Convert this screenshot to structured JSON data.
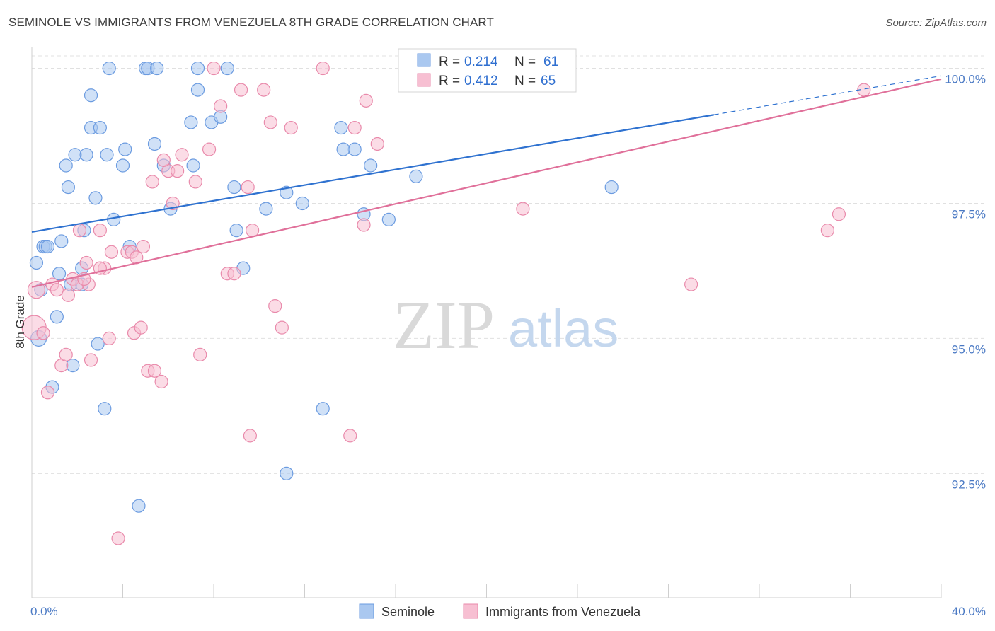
{
  "title": "SEMINOLE VS IMMIGRANTS FROM VENEZUELA 8TH GRADE CORRELATION CHART",
  "source": "Source: ZipAtlas.com",
  "watermark": {
    "zip": "ZIP",
    "atlas": "atlas"
  },
  "colors": {
    "seminole_fill": "#aac8f0",
    "seminole_stroke": "#6b9be0",
    "seminole_line": "#2f72d0",
    "venezuela_fill": "#f7bfd2",
    "venezuela_stroke": "#e98aab",
    "venezuela_line": "#e0709a",
    "grid": "#e0e0e0",
    "tick_label": "#4a79c4"
  },
  "legend": {
    "r_label": "R =",
    "n_label": "N =",
    "series": [
      {
        "r": "0.214",
        "n": "61"
      },
      {
        "r": "0.412",
        "n": "65"
      }
    ]
  },
  "chart_data": {
    "type": "scatter",
    "title": "SEMINOLE VS IMMIGRANTS FROM VENEZUELA 8TH GRADE CORRELATION CHART",
    "xlabel": "",
    "ylabel": "8th Grade",
    "xlim": [
      0,
      40
    ],
    "ylim": [
      90.2,
      100.4
    ],
    "x_tick_labels": [
      "0.0%",
      "40.0%"
    ],
    "y_ticks": [
      92.5,
      95.0,
      97.5,
      100.0
    ],
    "y_tick_labels": [
      "92.5%",
      "95.0%",
      "97.5%",
      "100.0%"
    ],
    "grid": "horizontal dashed",
    "legend_position": "top-center",
    "series": [
      {
        "name": "Seminole",
        "trend": {
          "x0": 0,
          "y0": 96.97,
          "x1": 30,
          "y1": 99.14,
          "dashed_to_x": 40,
          "dashed_to_y": 99.86
        },
        "points": [
          [
            0.2,
            96.4
          ],
          [
            0.5,
            96.7
          ],
          [
            0.6,
            96.7
          ],
          [
            0.7,
            96.7
          ],
          [
            1.3,
            96.8
          ],
          [
            0.4,
            95.9
          ],
          [
            1.2,
            96.2
          ],
          [
            1.7,
            96.0
          ],
          [
            2.2,
            96.0
          ],
          [
            0.3,
            95.0
          ],
          [
            1.1,
            95.4
          ],
          [
            2.9,
            94.9
          ],
          [
            1.8,
            94.5
          ],
          [
            0.9,
            94.1
          ],
          [
            3.2,
            93.7
          ],
          [
            4.7,
            91.9
          ],
          [
            11.2,
            92.5
          ],
          [
            12.8,
            93.7
          ],
          [
            2.3,
            97.0
          ],
          [
            3.6,
            97.2
          ],
          [
            2.8,
            97.6
          ],
          [
            1.6,
            97.8
          ],
          [
            1.5,
            98.2
          ],
          [
            1.9,
            98.4
          ],
          [
            2.4,
            98.4
          ],
          [
            3.3,
            98.4
          ],
          [
            4.0,
            98.2
          ],
          [
            4.1,
            98.5
          ],
          [
            5.4,
            98.6
          ],
          [
            5.8,
            98.2
          ],
          [
            6.1,
            97.4
          ],
          [
            7.1,
            98.2
          ],
          [
            8.9,
            97.8
          ],
          [
            9.0,
            97.0
          ],
          [
            9.3,
            96.3
          ],
          [
            10.3,
            97.4
          ],
          [
            11.2,
            97.7
          ],
          [
            11.9,
            97.5
          ],
          [
            14.6,
            97.3
          ],
          [
            15.7,
            97.2
          ],
          [
            16.9,
            98.0
          ],
          [
            14.2,
            98.5
          ],
          [
            14.9,
            98.2
          ],
          [
            13.7,
            98.5
          ],
          [
            13.6,
            98.9
          ],
          [
            7.0,
            99.0
          ],
          [
            7.9,
            99.0
          ],
          [
            8.3,
            99.1
          ],
          [
            2.6,
            98.9
          ],
          [
            3.0,
            98.9
          ],
          [
            2.6,
            99.5
          ],
          [
            5.0,
            100.0
          ],
          [
            5.1,
            100.0
          ],
          [
            5.5,
            100.0
          ],
          [
            7.3,
            100.0
          ],
          [
            8.6,
            100.0
          ],
          [
            3.4,
            100.0
          ],
          [
            7.3,
            99.6
          ],
          [
            4.3,
            96.7
          ],
          [
            25.5,
            97.8
          ],
          [
            2.2,
            96.3
          ]
        ]
      },
      {
        "name": "Immigrants from Venezuela",
        "trend": {
          "x0": 0,
          "y0": 95.95,
          "x1": 40,
          "y1": 99.8
        },
        "points": [
          [
            0.1,
            95.2
          ],
          [
            0.2,
            95.9
          ],
          [
            0.5,
            95.1
          ],
          [
            0.7,
            94.0
          ],
          [
            0.9,
            96.0
          ],
          [
            1.1,
            95.9
          ],
          [
            1.6,
            95.8
          ],
          [
            1.8,
            96.1
          ],
          [
            2.0,
            96.0
          ],
          [
            1.3,
            94.5
          ],
          [
            1.5,
            94.7
          ],
          [
            2.6,
            94.6
          ],
          [
            3.4,
            95.0
          ],
          [
            2.5,
            96.0
          ],
          [
            2.4,
            96.4
          ],
          [
            3.2,
            96.3
          ],
          [
            2.1,
            97.0
          ],
          [
            3.0,
            97.0
          ],
          [
            3.5,
            96.6
          ],
          [
            4.2,
            96.6
          ],
          [
            4.4,
            96.6
          ],
          [
            4.6,
            96.5
          ],
          [
            4.9,
            96.7
          ],
          [
            4.5,
            95.1
          ],
          [
            4.8,
            95.2
          ],
          [
            5.1,
            94.4
          ],
          [
            5.4,
            94.4
          ],
          [
            5.7,
            94.2
          ],
          [
            3.8,
            91.3
          ],
          [
            7.4,
            94.7
          ],
          [
            8.6,
            96.2
          ],
          [
            8.9,
            96.2
          ],
          [
            9.5,
            97.8
          ],
          [
            9.7,
            97.0
          ],
          [
            10.7,
            95.6
          ],
          [
            11.0,
            95.2
          ],
          [
            9.6,
            93.2
          ],
          [
            14.0,
            93.2
          ],
          [
            14.6,
            97.1
          ],
          [
            5.3,
            97.9
          ],
          [
            6.0,
            98.1
          ],
          [
            6.4,
            98.1
          ],
          [
            6.2,
            97.5
          ],
          [
            7.2,
            97.9
          ],
          [
            7.8,
            98.5
          ],
          [
            5.8,
            98.3
          ],
          [
            6.6,
            98.4
          ],
          [
            8.3,
            99.3
          ],
          [
            9.2,
            99.6
          ],
          [
            10.2,
            99.6
          ],
          [
            10.5,
            99.0
          ],
          [
            11.4,
            98.9
          ],
          [
            14.2,
            98.9
          ],
          [
            15.2,
            98.6
          ],
          [
            8.0,
            100.0
          ],
          [
            12.8,
            100.0
          ],
          [
            14.7,
            99.4
          ],
          [
            21.6,
            97.4
          ],
          [
            29.0,
            96.0
          ],
          [
            35.0,
            97.0
          ],
          [
            35.5,
            97.3
          ],
          [
            36.6,
            99.6
          ],
          [
            21.8,
            100.0
          ],
          [
            3.0,
            96.3
          ],
          [
            2.3,
            96.1
          ]
        ]
      }
    ]
  },
  "bottom_legend": [
    "Seminole",
    "Immigrants from Venezuela"
  ]
}
